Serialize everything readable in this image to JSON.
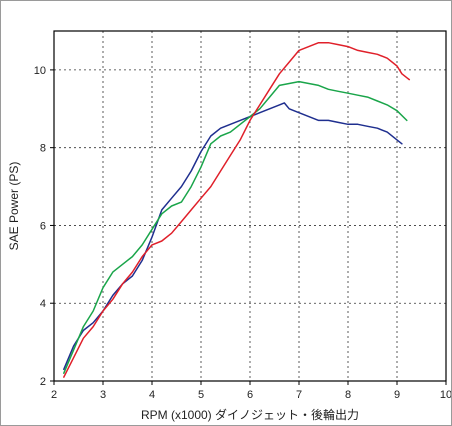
{
  "chart_data": {
    "type": "line",
    "title": "",
    "xlabel": "RPM (x1000) ダイノジェット・後輪出力",
    "ylabel": "SAE Power (PS)",
    "xlim": [
      2,
      10
    ],
    "ylim": [
      2,
      11
    ],
    "x_ticks": [
      2,
      3,
      4,
      5,
      6,
      7,
      8,
      9,
      10
    ],
    "y_ticks": [
      2,
      4,
      6,
      8,
      10
    ],
    "grid": true,
    "series": [
      {
        "color": "#1f2f8f",
        "x": [
          2.2,
          2.4,
          2.6,
          2.8,
          3.0,
          3.2,
          3.4,
          3.6,
          3.8,
          4.0,
          4.2,
          4.4,
          4.6,
          4.8,
          5.0,
          5.2,
          5.4,
          5.6,
          5.8,
          6.0,
          6.2,
          6.4,
          6.6,
          6.7,
          6.8,
          7.0,
          7.2,
          7.4,
          7.6,
          7.8,
          8.0,
          8.2,
          8.4,
          8.6,
          8.8,
          9.0,
          9.1
        ],
        "y": [
          2.3,
          2.9,
          3.3,
          3.5,
          3.8,
          4.2,
          4.5,
          4.7,
          5.1,
          5.7,
          6.4,
          6.7,
          7.0,
          7.4,
          7.9,
          8.3,
          8.5,
          8.6,
          8.7,
          8.8,
          8.9,
          9.0,
          9.1,
          9.15,
          9.0,
          8.9,
          8.8,
          8.7,
          8.7,
          8.65,
          8.6,
          8.6,
          8.55,
          8.5,
          8.4,
          8.2,
          8.1
        ]
      },
      {
        "color": "#1aa54a",
        "x": [
          2.2,
          2.4,
          2.6,
          2.8,
          3.0,
          3.2,
          3.4,
          3.6,
          3.8,
          4.0,
          4.2,
          4.4,
          4.6,
          4.8,
          5.0,
          5.2,
          5.4,
          5.6,
          5.8,
          6.0,
          6.2,
          6.4,
          6.6,
          6.8,
          7.0,
          7.2,
          7.4,
          7.6,
          7.8,
          8.0,
          8.2,
          8.4,
          8.6,
          8.8,
          9.0,
          9.2
        ],
        "y": [
          2.2,
          2.8,
          3.4,
          3.8,
          4.4,
          4.8,
          5.0,
          5.2,
          5.5,
          5.9,
          6.3,
          6.5,
          6.6,
          7.0,
          7.5,
          8.1,
          8.3,
          8.4,
          8.6,
          8.8,
          9.0,
          9.3,
          9.6,
          9.65,
          9.7,
          9.65,
          9.6,
          9.5,
          9.45,
          9.4,
          9.35,
          9.3,
          9.2,
          9.1,
          8.95,
          8.7
        ]
      },
      {
        "color": "#e0202a",
        "x": [
          2.2,
          2.4,
          2.6,
          2.8,
          3.0,
          3.2,
          3.4,
          3.6,
          3.8,
          4.0,
          4.2,
          4.4,
          4.6,
          4.8,
          5.0,
          5.2,
          5.4,
          5.6,
          5.8,
          6.0,
          6.2,
          6.4,
          6.6,
          6.8,
          7.0,
          7.2,
          7.4,
          7.6,
          7.8,
          8.0,
          8.2,
          8.4,
          8.6,
          8.8,
          9.0,
          9.1,
          9.2,
          9.25
        ],
        "y": [
          2.1,
          2.6,
          3.1,
          3.4,
          3.8,
          4.1,
          4.5,
          4.8,
          5.2,
          5.5,
          5.6,
          5.8,
          6.1,
          6.4,
          6.7,
          7.0,
          7.4,
          7.8,
          8.2,
          8.7,
          9.1,
          9.5,
          9.9,
          10.2,
          10.5,
          10.6,
          10.7,
          10.7,
          10.65,
          10.6,
          10.5,
          10.45,
          10.4,
          10.3,
          10.1,
          9.9,
          9.8,
          9.75
        ]
      }
    ]
  }
}
